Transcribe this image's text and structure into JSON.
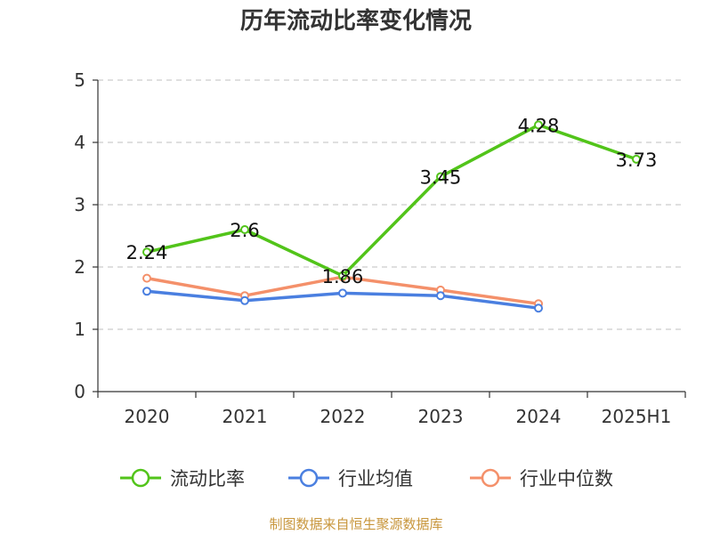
{
  "chart_data": {
    "type": "line",
    "title": "历年流动比率变化情况",
    "categories": [
      "2020",
      "2021",
      "2022",
      "2023",
      "2024",
      "2025H1"
    ],
    "ylim": [
      0,
      5
    ],
    "yticks": [
      0,
      1,
      2,
      3,
      4,
      5
    ],
    "grid": true,
    "legend_position": "bottom",
    "series": [
      {
        "name": "流动比率",
        "color": "#52c41a",
        "values": [
          2.24,
          2.6,
          1.86,
          3.45,
          4.28,
          3.73
        ],
        "labels": [
          "2.24",
          "2.6",
          "1.86",
          "3.45",
          "4.28",
          "3.73"
        ]
      },
      {
        "name": "行业均值",
        "color": "#4a7fe0",
        "values": [
          1.61,
          1.46,
          1.58,
          1.54,
          1.34,
          null
        ]
      },
      {
        "name": "行业中位数",
        "color": "#f4906a",
        "values": [
          1.82,
          1.54,
          1.84,
          1.63,
          1.41,
          null
        ]
      }
    ],
    "source": "制图数据来自恒生聚源数据库"
  }
}
